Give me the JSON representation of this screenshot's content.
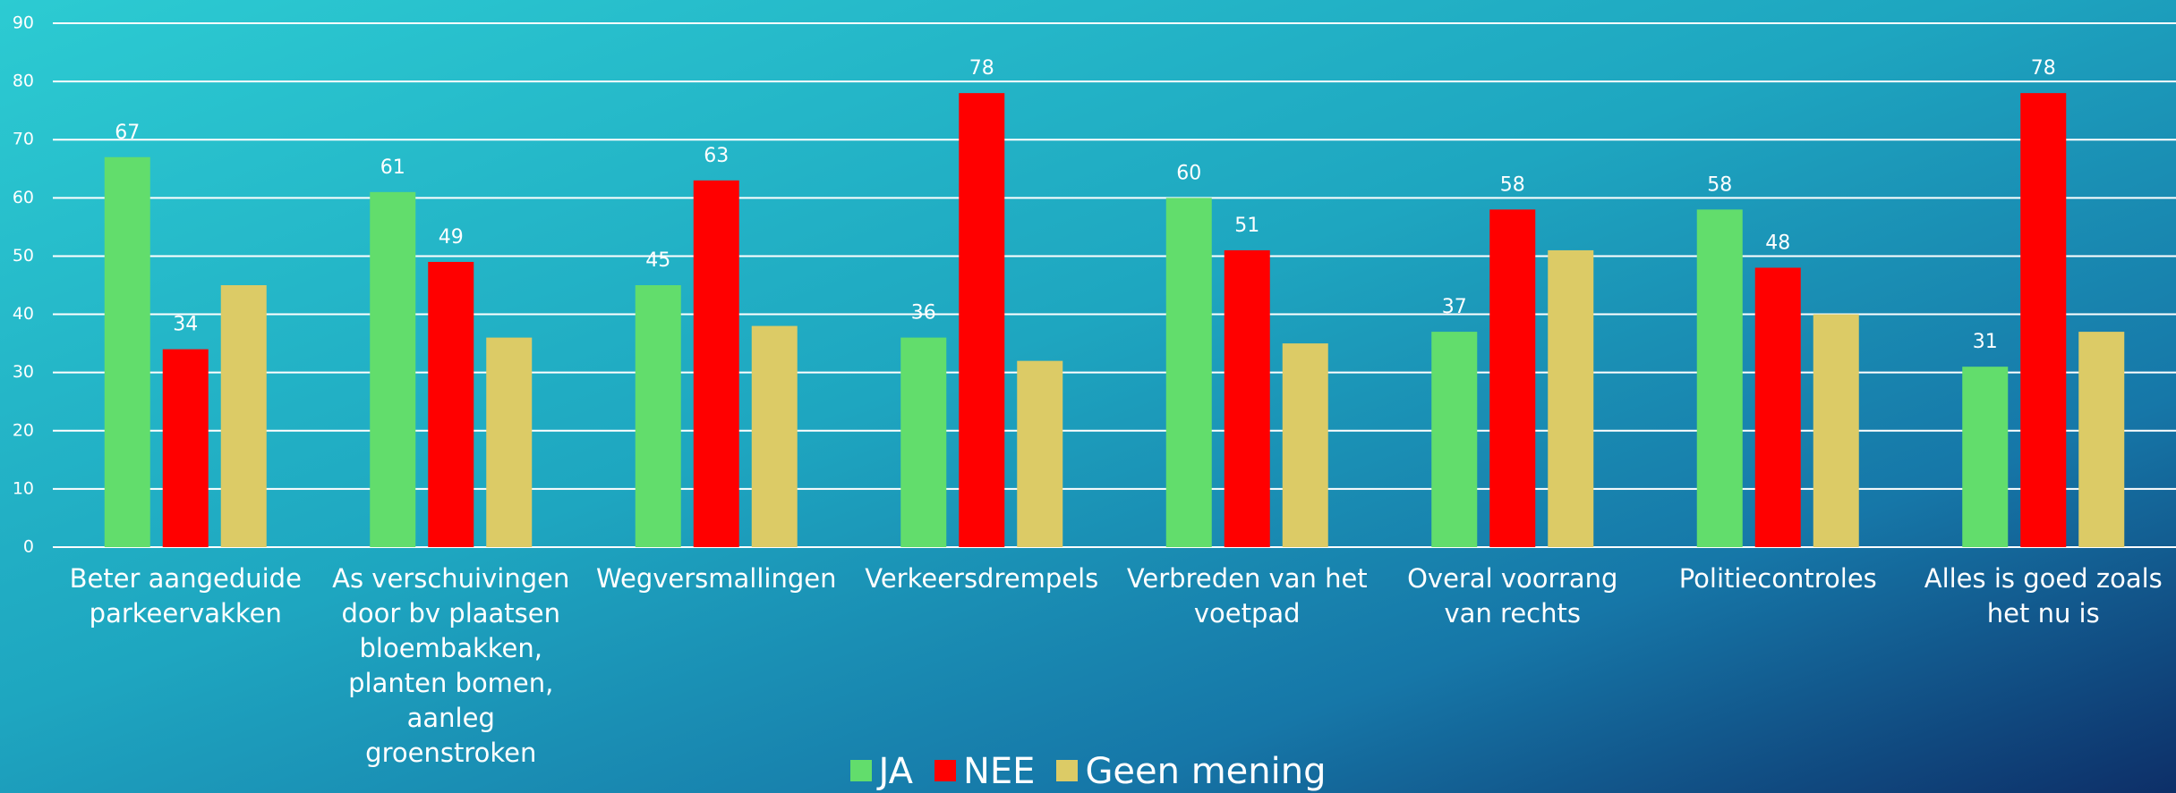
{
  "chart_data": {
    "type": "bar",
    "categories": [
      "Beter aangeduide parkeervakken",
      "As verschuivingen door bv plaatsen bloembakken, planten bomen, aanleg groenstroken",
      "Wegversmallingen",
      "Verkeersdrempels",
      "Verbreden van het voetpad",
      "Overal voorrang van rechts",
      "Politiecontroles",
      "Alles is goed zoals het nu is"
    ],
    "series": [
      {
        "name": "JA",
        "color": "#62dd6c",
        "values": [
          67,
          61,
          45,
          36,
          60,
          37,
          58,
          31
        ],
        "show_labels": true
      },
      {
        "name": "NEE",
        "color": "#ff0000",
        "values": [
          34,
          49,
          63,
          78,
          51,
          58,
          48,
          78
        ],
        "show_labels": true
      },
      {
        "name": "Geen mening",
        "color": "#dccb66",
        "values": [
          45,
          36,
          38,
          32,
          35,
          51,
          40,
          37
        ],
        "show_labels": false
      }
    ],
    "ylim": [
      0,
      90
    ],
    "yticks": [
      0,
      10,
      20,
      30,
      40,
      50,
      60,
      70,
      80,
      90
    ],
    "grid": true,
    "legend": "bottom"
  }
}
